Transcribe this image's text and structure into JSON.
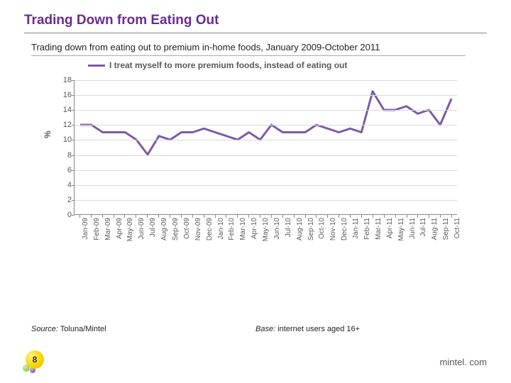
{
  "title": "Trading Down from Eating Out",
  "subtitle": "Trading down from eating out to premium in-home foods, January 2009-October 2011",
  "legend_label": "I treat myself to more premium foods, instead of eating out",
  "chart": {
    "type": "line",
    "ylabel": "%",
    "ylim": [
      0,
      18
    ],
    "ytick_step": 2,
    "line_color": "#7c5aa6",
    "line_width": 3,
    "grid_color": "#d9d9d9",
    "axis_color": "#888888",
    "tick_font_color": "#595959",
    "legend_text_color": "#595959",
    "background_color": "#ffffff",
    "categories": [
      "Jan-09",
      "Feb-09",
      "Mar-09",
      "Apr-09",
      "May-09",
      "Jun-09",
      "Jul-09",
      "Aug-09",
      "Sep-09",
      "Oct-09",
      "Nov-09",
      "Dec-09",
      "Jan-10",
      "Feb-10",
      "Mar-10",
      "Apr-10",
      "May-10",
      "Jun-10",
      "Jul-10",
      "Aug-10",
      "Sep-10",
      "Oct-10",
      "Nov-10",
      "Dec-10",
      "Jan-11",
      "Feb-11",
      "Mar-11",
      "Apr-11",
      "May-11",
      "Jun-11",
      "Jul-11",
      "Aug-11",
      "Sep-11",
      "Oct-11"
    ],
    "values": [
      12,
      12,
      11,
      11,
      11,
      10,
      8,
      10.5,
      10,
      11,
      11,
      11.5,
      11,
      10.5,
      10,
      11,
      10,
      12,
      11,
      11,
      11,
      12,
      11.5,
      11,
      11.5,
      11,
      16.5,
      14,
      14,
      14.5,
      13.5,
      14,
      12,
      15.5
    ]
  },
  "source_label": "Source:",
  "source_value": "Toluna/Mintel",
  "base_label": "Base:",
  "base_value": "internet users aged 16+",
  "slide_number": "8",
  "brand": "mintel. com",
  "title_color": "#6a2c91"
}
